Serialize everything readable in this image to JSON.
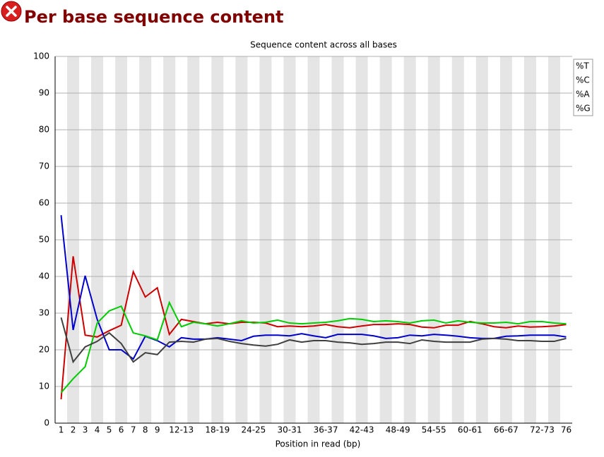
{
  "page_title": "Per base sequence content",
  "chart_data": {
    "type": "line",
    "title": "Sequence content across all bases",
    "x_label": "Position in read (bp)",
    "categories": [
      "1",
      "2",
      "3",
      "4",
      "5",
      "6",
      "7",
      "8",
      "9",
      null,
      "12-13",
      null,
      null,
      "18-19",
      null,
      null,
      "24-25",
      null,
      null,
      "30-31",
      null,
      null,
      "36-37",
      null,
      null,
      "42-43",
      null,
      null,
      "48-49",
      null,
      null,
      "54-55",
      null,
      null,
      "60-61",
      null,
      null,
      "66-67",
      null,
      null,
      "72-73",
      null,
      "76"
    ],
    "series": [
      {
        "name": "%T",
        "color": "#cc0000",
        "values": [
          6.5,
          45.5,
          24,
          23.5,
          25.2,
          26.7,
          41.3,
          34.4,
          36.9,
          24.2,
          28.3,
          27.7,
          27.1,
          27.5,
          27.1,
          27.5,
          27.5,
          27.3,
          26.3,
          26.5,
          26.3,
          26.5,
          26.9,
          26.3,
          26.0,
          26.5,
          26.9,
          26.9,
          27.1,
          26.9,
          26.2,
          26.0,
          26.7,
          26.7,
          27.7,
          27.1,
          26.3,
          26.0,
          26.5,
          26.2,
          26.3,
          26.5,
          26.9
        ]
      },
      {
        "name": "%C",
        "color": "#0000cc",
        "values": [
          56.7,
          25.4,
          40.2,
          28.3,
          20,
          20,
          17.5,
          23.7,
          22.5,
          20.8,
          23.3,
          22.9,
          22.9,
          23.3,
          22.9,
          22.5,
          23.7,
          24.0,
          24.0,
          23.8,
          24.4,
          23.8,
          23.3,
          24.2,
          24.2,
          24.2,
          23.8,
          23.1,
          23.3,
          24.0,
          23.8,
          24.2,
          24.0,
          23.7,
          23.3,
          23.1,
          23.1,
          23.7,
          23.8,
          24.0,
          24.0,
          24.0,
          23.5
        ]
      },
      {
        "name": "%A",
        "color": "#00cc00",
        "values": [
          8.3,
          12.1,
          15.4,
          27.3,
          30.6,
          31.9,
          24.6,
          23.8,
          22.7,
          32.9,
          26.3,
          27.5,
          27.1,
          26.5,
          27.1,
          27.9,
          27.3,
          27.5,
          28.1,
          27.3,
          27.1,
          27.3,
          27.5,
          27.9,
          28.5,
          28.3,
          27.7,
          27.9,
          27.7,
          27.3,
          27.9,
          28.1,
          27.3,
          27.9,
          27.5,
          27.3,
          27.3,
          27.5,
          27.1,
          27.7,
          27.7,
          27.3,
          27.1
        ]
      },
      {
        "name": "%G",
        "color": "#404040",
        "values": [
          28.8,
          16.7,
          20.8,
          22.3,
          24.6,
          21.7,
          16.7,
          19.2,
          18.7,
          22.1,
          22.3,
          22.1,
          22.9,
          23.1,
          22.3,
          21.7,
          21.3,
          21.0,
          21.5,
          22.7,
          22.1,
          22.5,
          22.5,
          22.1,
          21.9,
          21.5,
          21.7,
          22.1,
          22.1,
          21.7,
          22.7,
          22.3,
          22.1,
          22.1,
          22.1,
          22.9,
          23.1,
          22.9,
          22.5,
          22.5,
          22.3,
          22.3,
          23.1
        ]
      }
    ],
    "ylim": [
      0,
      100
    ],
    "yticks": [
      0,
      10,
      20,
      30,
      40,
      50,
      60,
      70,
      80,
      90,
      100
    ],
    "grid": true
  }
}
